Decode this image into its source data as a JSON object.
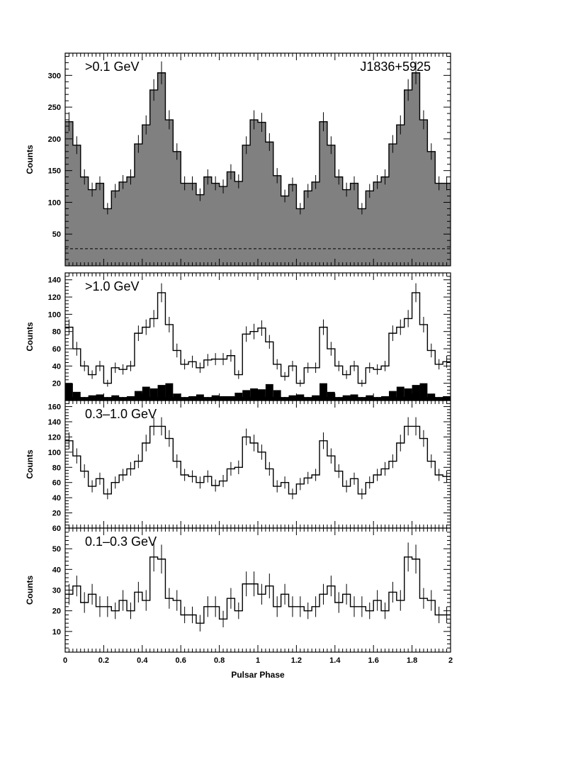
{
  "figure": {
    "source_name": "J1836+5925",
    "xlabel": "Pulsar Phase",
    "x_ticks": [
      "0",
      "0.2",
      "0.4",
      "0.6",
      "0.8",
      "1",
      "1.2",
      "1.4",
      "1.6",
      "1.8",
      "2"
    ]
  },
  "colors": {
    "filled_hist": "#808080",
    "background_hist": "#000000",
    "line": "#000000"
  },
  "chart_data": [
    {
      "type": "histogram",
      "panel_label": ">0.1 GeV",
      "ylabel": "Counts",
      "xlim": [
        0,
        2
      ],
      "ylim": [
        0,
        335
      ],
      "y_ticks": [
        50,
        100,
        150,
        200,
        250,
        300
      ],
      "filled": true,
      "bin_width": 0.04,
      "x_start": 0,
      "values": [
        227,
        190,
        140,
        120,
        130,
        90,
        118,
        132,
        140,
        192,
        222,
        277,
        304,
        230,
        180,
        130,
        130,
        112,
        140,
        130,
        125,
        148,
        133,
        190,
        230,
        226,
        195,
        142,
        110,
        128,
        90,
        118,
        132
      ],
      "errors": [
        15,
        14,
        12,
        11,
        11,
        9,
        11,
        11,
        12,
        14,
        15,
        17,
        18,
        15,
        13,
        11,
        11,
        10,
        12,
        11,
        11,
        12,
        11,
        14,
        15,
        15,
        14,
        12,
        10,
        11,
        9,
        11,
        11
      ],
      "symmetric_copy": true,
      "background_level": 27
    },
    {
      "type": "histogram",
      "panel_label": ">1.0 GeV",
      "ylabel": "Counts",
      "xlim": [
        0,
        2
      ],
      "ylim": [
        0,
        148
      ],
      "y_ticks": [
        20,
        40,
        60,
        80,
        100,
        120,
        140
      ],
      "filled": false,
      "bin_width": 0.04,
      "x_start": 0,
      "values": [
        85,
        60,
        40,
        30,
        40,
        20,
        38,
        36,
        40,
        78,
        85,
        95,
        125,
        88,
        58,
        42,
        45,
        38,
        47,
        48,
        48,
        52,
        30,
        77,
        80,
        84,
        68,
        42,
        28,
        40,
        20,
        38,
        38
      ],
      "errors": [
        9,
        8,
        6,
        5,
        6,
        4,
        6,
        6,
        6,
        9,
        9,
        10,
        11,
        9,
        8,
        6,
        7,
        6,
        7,
        7,
        7,
        7,
        5,
        9,
        9,
        9,
        8,
        6,
        5,
        6,
        4,
        6,
        6
      ],
      "symmetric_copy": true,
      "background_bars": [
        20,
        10,
        4,
        6,
        7,
        4,
        6,
        4,
        5,
        11,
        16,
        14,
        18,
        20,
        8,
        4,
        5,
        7,
        4,
        6,
        5,
        5,
        9,
        12,
        14,
        13,
        19,
        12,
        4,
        6,
        7,
        4,
        6
      ],
      "background_values_note": "filled black histogram"
    },
    {
      "type": "histogram",
      "panel_label": "0.3–1.0 GeV",
      "ylabel": "Counts",
      "xlim": [
        0,
        2
      ],
      "ylim": [
        0,
        168
      ],
      "y_ticks": [
        20,
        40,
        60,
        80,
        100,
        120,
        140,
        160
      ],
      "filled": false,
      "bin_width": 0.04,
      "x_start": 0,
      "values": [
        115,
        95,
        75,
        55,
        65,
        45,
        60,
        70,
        78,
        88,
        112,
        134,
        134,
        118,
        88,
        70,
        68,
        60,
        68,
        56,
        62,
        78,
        80,
        120,
        112,
        100,
        78,
        55,
        60,
        45,
        58,
        66,
        70
      ],
      "errors": [
        11,
        10,
        9,
        8,
        8,
        7,
        8,
        8,
        9,
        9,
        11,
        12,
        12,
        11,
        9,
        8,
        8,
        8,
        8,
        8,
        8,
        9,
        9,
        11,
        11,
        10,
        9,
        8,
        8,
        7,
        8,
        8,
        8
      ],
      "symmetric_copy": true
    },
    {
      "type": "histogram",
      "panel_label": "0.1–0.3 GeV",
      "ylabel": "Counts",
      "xlim": [
        0,
        2
      ],
      "ylim": [
        0,
        60
      ],
      "y_ticks": [
        10,
        20,
        30,
        40,
        50,
        60
      ],
      "filled": false,
      "bin_width": 0.04,
      "x_start": 0,
      "values": [
        28,
        32,
        24,
        28,
        22,
        22,
        20,
        25,
        20,
        29,
        25,
        46,
        45,
        26,
        25,
        18,
        18,
        14,
        22,
        22,
        16,
        26,
        20,
        33,
        33,
        28,
        32,
        22,
        28,
        22,
        22,
        20,
        22
      ],
      "errors": [
        5,
        5,
        5,
        5,
        5,
        5,
        4,
        5,
        4,
        5,
        5,
        7,
        7,
        5,
        5,
        4,
        4,
        4,
        5,
        5,
        4,
        5,
        4,
        6,
        6,
        5,
        6,
        5,
        5,
        5,
        5,
        4,
        5
      ],
      "symmetric_copy": true
    }
  ]
}
